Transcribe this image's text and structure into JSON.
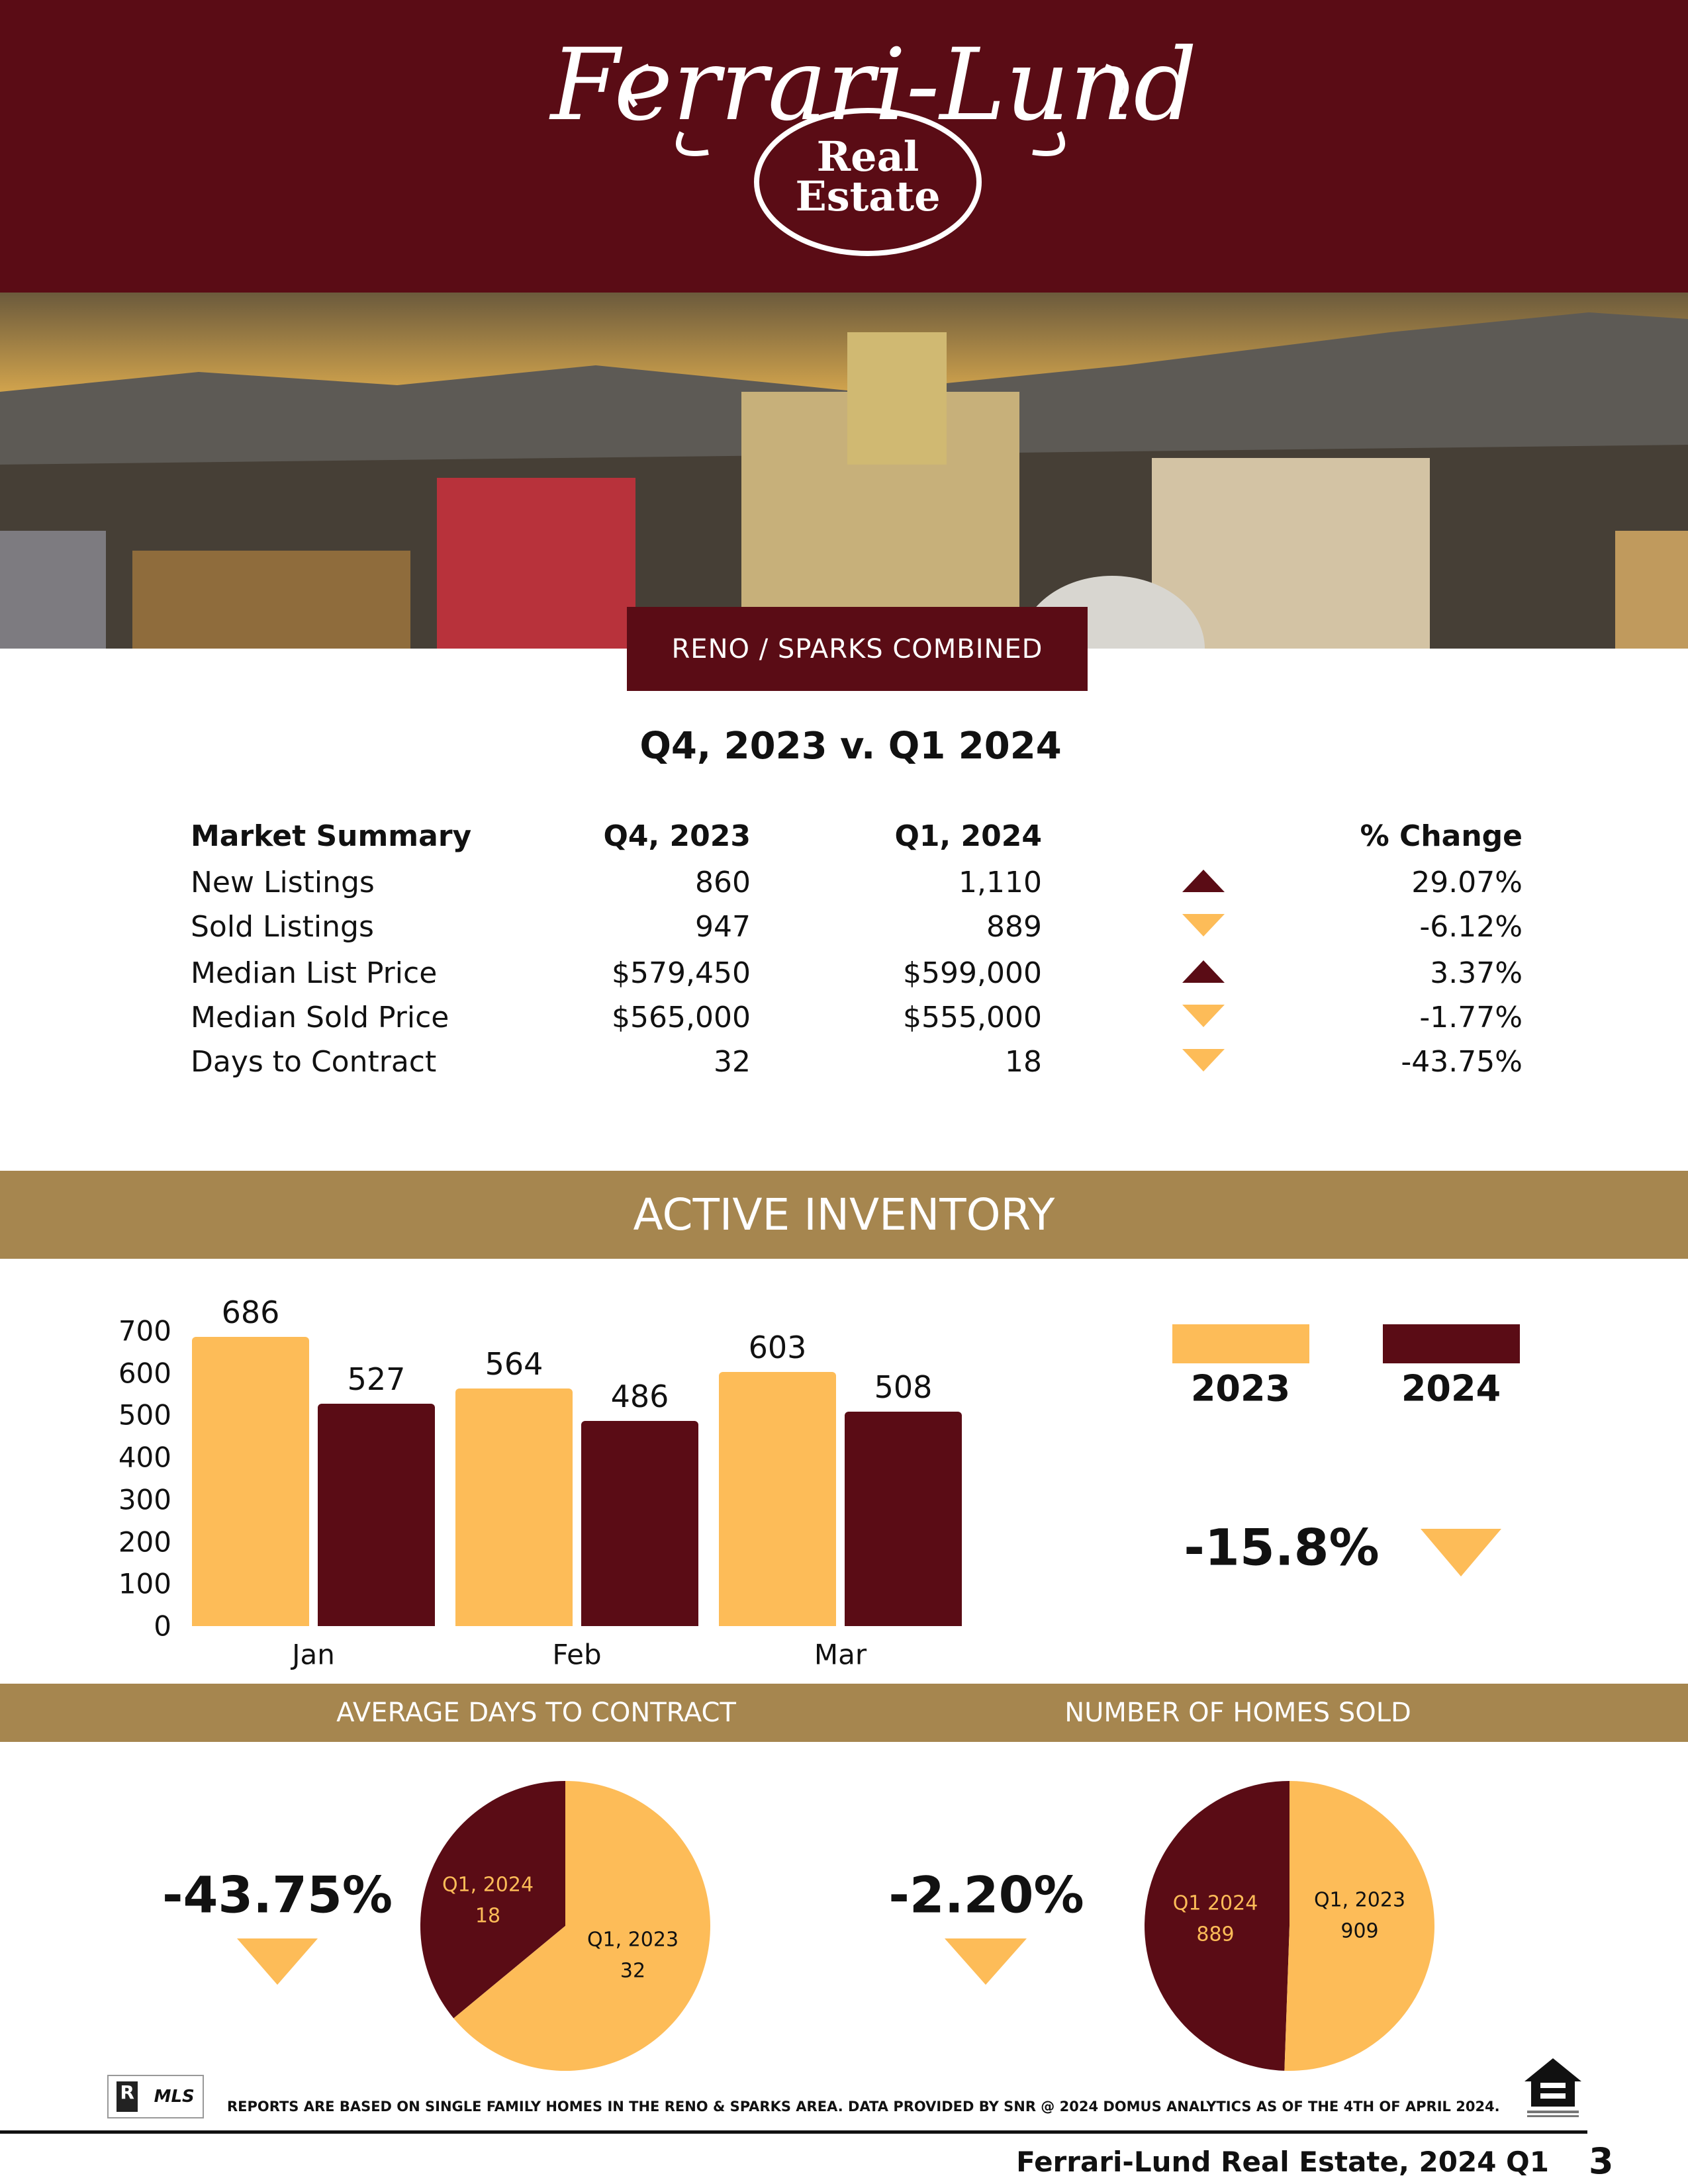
{
  "logo": {
    "brand": "Ferrari-Lund",
    "sub1": "Real",
    "sub2": "Estate"
  },
  "region_tag": "RENO / SPARKS COMBINED",
  "comparison_title": "Q4, 2023 v. Q1 2024",
  "market_summary": {
    "headers": [
      "Market Summary",
      "Q4, 2023",
      "Q1, 2024",
      "% Change"
    ],
    "rows": [
      {
        "label": "New Listings",
        "q4": "860",
        "q1": "1,110",
        "trend": "up",
        "change": "29.07%"
      },
      {
        "label": "Sold Listings",
        "q4": "947",
        "q1": "889",
        "trend": "down",
        "change": "-6.12%"
      },
      {
        "label": "Median List Price",
        "q4": "$579,450",
        "q1": "$599,000",
        "trend": "up",
        "change": "3.37%"
      },
      {
        "label": "Median Sold Price",
        "q4": "$565,000",
        "q1": "$555,000",
        "trend": "down",
        "change": "-1.77%"
      },
      {
        "label": "Days to Contract",
        "q4": "32",
        "q1": "18",
        "trend": "down",
        "change": "-43.75%"
      }
    ]
  },
  "colors": {
    "maroon": "#5a0c15",
    "gold": "#fdbc58",
    "band": "#a6864f"
  },
  "active_inventory": {
    "title": "ACTIVE INVENTORY",
    "change": "-15.8%",
    "trend": "down"
  },
  "sections": {
    "days_to_contract": "AVERAGE DAYS TO CONTRACT",
    "homes_sold": "NUMBER OF HOMES SOLD"
  },
  "days_to_contract_change": "-43.75%",
  "homes_sold_change": "-2.20%",
  "chart_data": [
    {
      "type": "bar",
      "categories": [
        "Jan",
        "Feb",
        "Mar"
      ],
      "series": [
        {
          "name": "2023",
          "values": [
            686,
            564,
            603
          ],
          "color": "#fdbc58"
        },
        {
          "name": "2024",
          "values": [
            527,
            486,
            508
          ],
          "color": "#5a0c15"
        }
      ],
      "yticks": [
        "0",
        "100",
        "200",
        "300",
        "400",
        "500",
        "600",
        "700"
      ],
      "ylim": [
        0,
        700
      ],
      "legend": "right",
      "grid": false
    },
    {
      "type": "pie",
      "slices": [
        {
          "label": "Q1, 2024",
          "value": 18,
          "color": "#5a0c15"
        },
        {
          "label": "Q1, 2023",
          "value": 32,
          "color": "#fdbc58"
        }
      ]
    },
    {
      "type": "pie",
      "slices": [
        {
          "label": "Q1 2024",
          "value": 889,
          "color": "#5a0c15"
        },
        {
          "label": "Q1, 2023",
          "value": 909,
          "color": "#fdbc58"
        }
      ]
    }
  ],
  "footer": {
    "disclaimer": "REPORTS ARE BASED ON SINGLE FAMILY HOMES IN THE RENO & SPARKS AREA. DATA PROVIDED BY SNR @ 2024 DOMUS ANALYTICS AS OF THE 4TH OF APRIL 2024.",
    "mls_logo": "MLS",
    "brand_line": "Ferrari-Lund Real Estate, 2024 Q1",
    "page_number": "3"
  }
}
